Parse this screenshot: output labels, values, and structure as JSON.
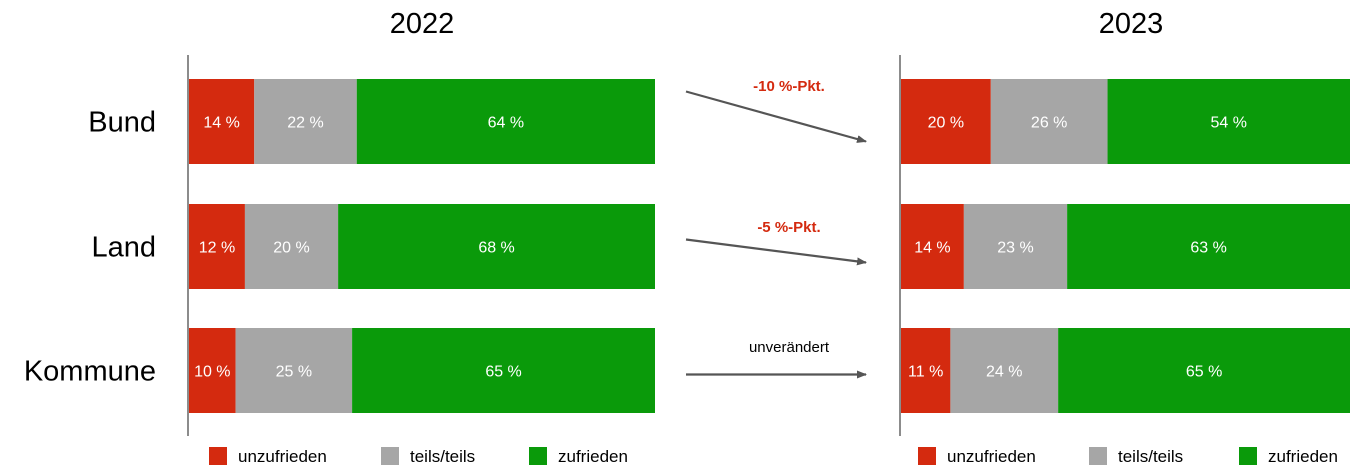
{
  "chart_data": {
    "type": "bar",
    "stacked": true,
    "orientation": "horizontal",
    "categories": [
      "Bund",
      "Land",
      "Kommune"
    ],
    "legend": {
      "placement": "bottom",
      "entries": [
        {
          "name": "unzufrieden",
          "color": "#d42a0f"
        },
        {
          "name": "teils/teils",
          "color": "#a6a6a6"
        },
        {
          "name": "zufrieden",
          "color": "#0a9a0a"
        }
      ]
    },
    "panels": [
      {
        "title": "2022",
        "xlim": [
          0,
          100
        ],
        "series": [
          {
            "name": "unzufrieden",
            "values": [
              14,
              12,
              10
            ],
            "labels": [
              "14 %",
              "12 %",
              "10 %"
            ]
          },
          {
            "name": "teils/teils",
            "values": [
              22,
              20,
              25
            ],
            "labels": [
              "22 %",
              "20 %",
              "25 %"
            ]
          },
          {
            "name": "zufrieden",
            "values": [
              64,
              68,
              65
            ],
            "labels": [
              "64 %",
              "68 %",
              "65 %"
            ]
          }
        ]
      },
      {
        "title": "2023",
        "xlim": [
          0,
          100
        ],
        "series": [
          {
            "name": "unzufrieden",
            "values": [
              20,
              14,
              11
            ],
            "labels": [
              "20 %",
              "14 %",
              "11 %"
            ]
          },
          {
            "name": "teils/teils",
            "values": [
              26,
              23,
              24
            ],
            "labels": [
              "26 %",
              "23 %",
              "24 %"
            ]
          },
          {
            "name": "zufrieden",
            "values": [
              54,
              63,
              65
            ],
            "labels": [
              "54 %",
              "63 %",
              "65 %"
            ]
          }
        ]
      }
    ],
    "changes": [
      {
        "category": "Bund",
        "label": "-10 %-Pkt.",
        "color": "#d42a0f",
        "bold": true,
        "trend": "down"
      },
      {
        "category": "Land",
        "label": "-5 %-Pkt.",
        "color": "#d42a0f",
        "bold": true,
        "trend": "down"
      },
      {
        "category": "Kommune",
        "label": "unverändert",
        "color": "#000000",
        "bold": false,
        "trend": "flat"
      }
    ]
  }
}
